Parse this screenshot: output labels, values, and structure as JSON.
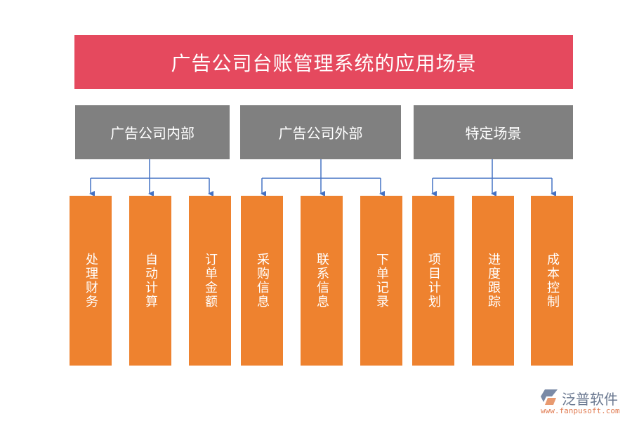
{
  "title": "广告公司台账管理系统的应用场景",
  "categories": [
    {
      "label": "广告公司内部",
      "items": [
        "处理财务",
        "自动计算",
        "订单金额"
      ]
    },
    {
      "label": "广告公司外部",
      "items": [
        "采购信息",
        "联系信息",
        "下单记录"
      ]
    },
    {
      "label": "特定场景",
      "items": [
        "项目计划",
        "进度跟踪",
        "成本控制"
      ]
    }
  ],
  "colors": {
    "title": "#e5495e",
    "category": "#808080",
    "leaf": "#ee822f",
    "connector": "#4472c4"
  },
  "logo": {
    "name": "泛普软件",
    "url": "www.fanpusoft.com"
  }
}
